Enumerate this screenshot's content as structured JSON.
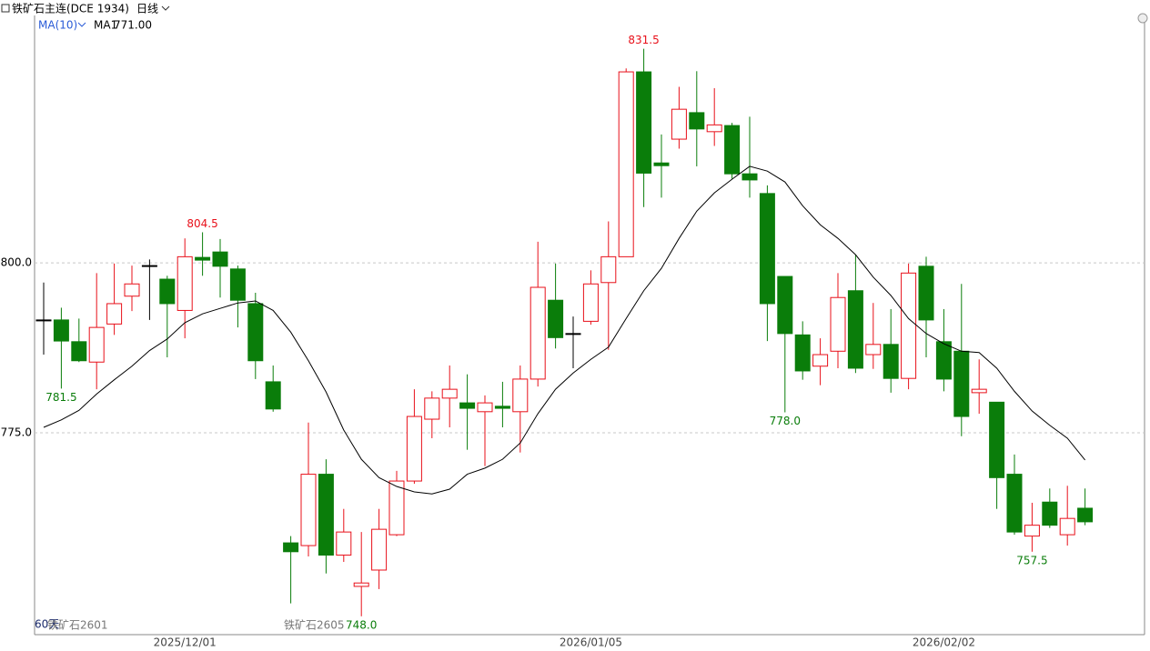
{
  "chart_data": {
    "type": "candlestick",
    "title": "铁矿石主连(DCE 1934)",
    "period": "日线",
    "indicator": "MA(10)",
    "footer": {
      "days": "60天",
      "contract1": "铁矿石2601",
      "contract2": "铁矿石2605"
    },
    "categories": [
      null,
      null,
      null,
      null,
      null,
      null,
      null,
      null,
      "2025/12/01",
      null,
      null,
      null,
      null,
      null,
      null,
      null,
      null,
      null,
      null,
      null,
      null,
      null,
      null,
      null,
      null,
      null,
      null,
      null,
      null,
      null,
      null,
      "2026/01/05",
      null,
      null,
      null,
      null,
      null,
      null,
      null,
      null,
      null,
      null,
      null,
      null,
      null,
      null,
      null,
      null,
      null,
      null,
      null,
      "2026/02/02",
      null,
      null,
      null,
      null,
      null,
      null,
      null,
      null
    ],
    "open": [
      791.6,
      791.6,
      788.4,
      785.4,
      791.0,
      795.1,
      799.6,
      797.6,
      793.0,
      800.8,
      801.6,
      799.1,
      794.0,
      782.5,
      758.8,
      758.4,
      768.9,
      757.0,
      752.4,
      754.8,
      760.0,
      767.9,
      777.0,
      780.1,
      779.4,
      778.1,
      778.9,
      778.1,
      782.9,
      794.5,
      789.6,
      791.4,
      797.1,
      800.9,
      828.1,
      814.7,
      818.2,
      822.1,
      819.3,
      820.2,
      813.1,
      810.2,
      798.0,
      789.4,
      784.8,
      787.0,
      795.9,
      786.5,
      788.0,
      783.0,
      799.5,
      788.4,
      787.0,
      780.9,
      779.5,
      768.9,
      759.8,
      764.8,
      760.0,
      763.9
    ],
    "high": [
      797.1,
      793.4,
      791.8,
      798.5,
      799.9,
      799.6,
      800.5,
      798.1,
      803.6,
      804.5,
      803.5,
      799.6,
      795.6,
      784.9,
      759.8,
      776.5,
      771.1,
      763.8,
      760.4,
      763.8,
      769.4,
      781.4,
      781.1,
      784.9,
      783.6,
      780.5,
      782.5,
      784.9,
      803.1,
      799.9,
      792.1,
      798.9,
      806.1,
      828.6,
      831.5,
      818.9,
      825.9,
      828.2,
      825.7,
      820.6,
      821.5,
      811.4,
      798.0,
      791.4,
      788.9,
      798.5,
      801.2,
      794.1,
      793.2,
      799.9,
      800.9,
      793.2,
      796.9,
      785.8,
      779.5,
      771.8,
      764.7,
      766.8,
      767.2,
      766.8
    ],
    "low": [
      786.5,
      781.5,
      785.4,
      781.4,
      789.4,
      792.9,
      791.6,
      786.1,
      788.9,
      798.1,
      794.9,
      790.5,
      782.9,
      778.1,
      749.9,
      756.8,
      754.3,
      756.0,
      748.0,
      752.0,
      759.8,
      767.5,
      774.2,
      775.8,
      772.5,
      770.1,
      775.8,
      772.1,
      781.8,
      787.4,
      784.5,
      790.9,
      787.2,
      800.9,
      808.2,
      809.6,
      816.8,
      814.2,
      817.2,
      812.4,
      809.6,
      788.5,
      778.0,
      782.8,
      782.0,
      784.5,
      783.8,
      784.4,
      780.9,
      781.4,
      786.1,
      781.1,
      774.5,
      777.8,
      763.8,
      760.0,
      757.5,
      761.0,
      758.4,
      761.4
    ],
    "close": [
      791.6,
      788.5,
      785.6,
      790.5,
      794.0,
      796.9,
      799.6,
      794.0,
      800.9,
      800.4,
      799.5,
      794.5,
      785.6,
      778.5,
      757.5,
      768.9,
      757.0,
      760.4,
      752.9,
      760.8,
      767.9,
      777.4,
      780.1,
      781.4,
      778.6,
      779.4,
      778.6,
      782.9,
      796.4,
      789.0,
      789.6,
      796.9,
      800.9,
      828.1,
      813.2,
      814.3,
      822.6,
      819.7,
      820.3,
      813.1,
      812.2,
      794.0,
      789.6,
      784.1,
      786.5,
      794.9,
      784.5,
      788.0,
      783.0,
      798.5,
      791.6,
      782.9,
      777.4,
      781.4,
      768.4,
      760.4,
      761.4,
      761.4,
      762.4,
      761.9
    ],
    "colors": {
      "up": "#e8101a",
      "down": "#0a7d0a",
      "flat": "#000000",
      "ma": "#000000"
    },
    "series": [
      {
        "name": "MA1",
        "value_label": "771.00",
        "values": [
          775.8,
          776.9,
          778.3,
          780.7,
          782.8,
          784.8,
          787.1,
          788.8,
          791.2,
          792.5,
          793.3,
          794.1,
          794.4,
          793.0,
          789.8,
          785.6,
          781.0,
          775.4,
          771.1,
          768.4,
          767.1,
          766.3,
          766.0,
          766.7,
          768.9,
          769.8,
          771.1,
          773.5,
          777.8,
          781.4,
          783.8,
          785.8,
          787.6,
          791.8,
          795.9,
          799.2,
          803.6,
          807.6,
          810.3,
          812.3,
          814.2,
          813.5,
          811.9,
          808.4,
          805.6,
          803.6,
          801.2,
          797.9,
          795.2,
          791.8,
          789.6,
          788.1,
          787.0,
          786.8,
          784.5,
          781.1,
          778.2,
          776.1,
          774.2,
          771.0
        ]
      }
    ],
    "annotations": [
      {
        "value": 831.5,
        "label": "831.5"
      },
      {
        "value": 804.5,
        "label": "804.5"
      },
      {
        "value": 781.5,
        "label": "781.5"
      },
      {
        "value": 778.0,
        "label": "778.0"
      },
      {
        "value": 748.0,
        "label": "748.0"
      },
      {
        "value": 757.5,
        "label": "757.5"
      }
    ],
    "ylim": [
      745.3,
      836.4
    ],
    "yticks": [
      {
        "value": 775,
        "label": "775.0"
      },
      {
        "value": 800,
        "label": "800.0"
      }
    ],
    "grid": true
  }
}
